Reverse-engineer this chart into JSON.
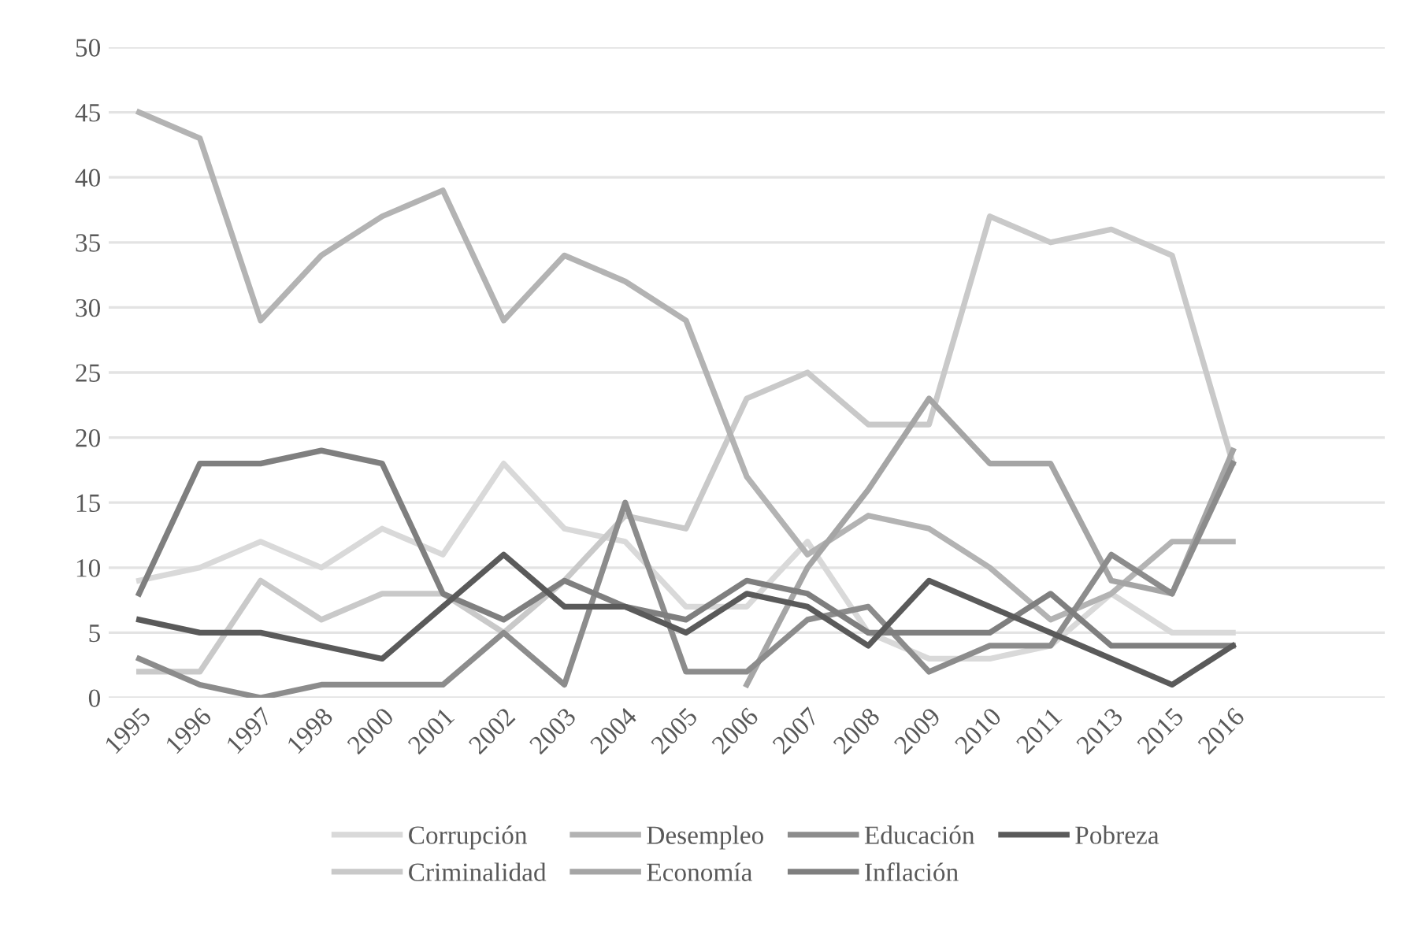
{
  "chart_data": {
    "type": "line",
    "categories": [
      "1995",
      "1996",
      "1997",
      "1998",
      "2000",
      "2001",
      "2002",
      "2003",
      "2004",
      "2005",
      "2006",
      "2007",
      "2008",
      "2009",
      "2010",
      "2011",
      "2013",
      "2015",
      "2016",
      null,
      null
    ],
    "series": [
      {
        "name": "Corrupción",
        "color": "#d9d9d9",
        "values": [
          9,
          10,
          12,
          10,
          13,
          11,
          18,
          13,
          12,
          7,
          7,
          12,
          5,
          3,
          3,
          4,
          8,
          5,
          5,
          null,
          null
        ]
      },
      {
        "name": "Criminalidad",
        "color": "#c9c9c9",
        "values": [
          2,
          2,
          9,
          6,
          8,
          8,
          5,
          9,
          14,
          13,
          23,
          25,
          21,
          21,
          37,
          35,
          36,
          34,
          18,
          null,
          null
        ]
      },
      {
        "name": "Desempleo",
        "color": "#b3b3b3",
        "values": [
          45,
          43,
          29,
          34,
          37,
          39,
          29,
          34,
          32,
          29,
          17,
          11,
          14,
          13,
          10,
          6,
          8,
          12,
          12,
          null,
          null
        ]
      },
      {
        "name": "Economía",
        "color": "#a5a5a5",
        "values": [
          null,
          null,
          null,
          null,
          null,
          null,
          null,
          null,
          null,
          null,
          1,
          10,
          16,
          23,
          18,
          18,
          9,
          8,
          19,
          null,
          null
        ]
      },
      {
        "name": "Educación",
        "color": "#8c8c8c",
        "values": [
          3,
          1,
          0,
          1,
          1,
          1,
          5,
          1,
          15,
          2,
          2,
          6,
          7,
          2,
          4,
          4,
          11,
          8,
          18,
          null,
          null
        ]
      },
      {
        "name": "Inflación",
        "color": "#7f7f7f",
        "values": [
          8,
          18,
          18,
          19,
          18,
          8,
          6,
          9,
          7,
          6,
          9,
          8,
          5,
          5,
          5,
          8,
          4,
          4,
          4,
          null,
          null
        ]
      },
      {
        "name": "Pobreza",
        "color": "#5a5a5a",
        "values": [
          6,
          5,
          5,
          4,
          3,
          7,
          11,
          7,
          7,
          5,
          8,
          7,
          4,
          9,
          7,
          5,
          3,
          1,
          4,
          null,
          null
        ]
      }
    ],
    "ylim": [
      0,
      50
    ],
    "yticks": [
      0,
      5,
      10,
      15,
      20,
      25,
      30,
      35,
      40,
      45,
      50
    ],
    "grid": "y",
    "legend": "bottom",
    "marker": "none",
    "line_style": "solid"
  }
}
